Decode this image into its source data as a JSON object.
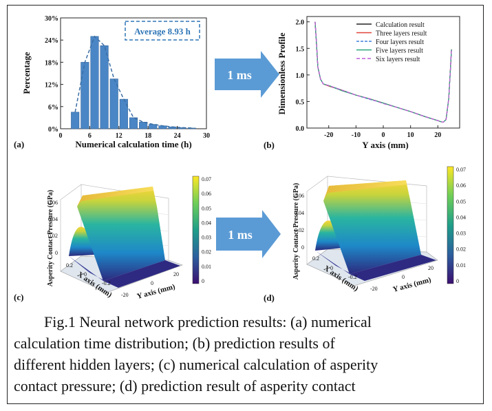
{
  "panel_a": {
    "tag": "(a)",
    "annotation": "Average 8.93 h",
    "xlabel": "Numerical calculation time (h)",
    "ylabel": "Percentage",
    "xticks": [
      "0",
      "6",
      "12",
      "18",
      "24",
      "30"
    ],
    "yticks": [
      "0%",
      "6%",
      "12%",
      "18%",
      "24%",
      "30%"
    ]
  },
  "panel_b": {
    "tag": "(b)",
    "xlabel": "Y axis (mm)",
    "ylabel": "Dimensionless Profile",
    "xticks": [
      "-20",
      "-10",
      "0",
      "10",
      "20"
    ],
    "yticks": [
      "0.0",
      "0.5",
      "1.0",
      "1.5",
      "2.0"
    ],
    "legend": [
      "Calculation result",
      "Three layers result",
      "Four layers result",
      "Five layers result",
      "Six layers result"
    ]
  },
  "panel_c": {
    "tag": "(c)",
    "zlabel": "Asperity Contact Pressure (GPa)",
    "xlabel": "X axis (mm)",
    "ylabel": "Y axis (mm)",
    "zticks": [
      "0",
      "0.02",
      "0.04",
      "0.06"
    ],
    "xticks": [
      "0.2",
      "0",
      "-0.2"
    ],
    "yticks": [
      "-20",
      "0",
      "20"
    ],
    "colorbar_ticks": [
      "0.07",
      "0.06",
      "0.05",
      "0.04",
      "0.03",
      "0.02",
      "0.01",
      "0"
    ]
  },
  "panel_d": {
    "tag": "(d)",
    "zlabel": "Asperity Contact Pressure (GPa)",
    "xlabel": "X axis (mm)",
    "ylabel": "Y axis (mm)",
    "zticks": [
      "0",
      "0.02",
      "0.04",
      "0.06"
    ],
    "xticks": [
      "0.2",
      "0",
      "-0.2"
    ],
    "yticks": [
      "-20",
      "0",
      "20"
    ],
    "colorbar_ticks": [
      "0.07",
      "0.06",
      "0.05",
      "0.04",
      "0.03",
      "0.02",
      "0.01",
      "0"
    ]
  },
  "arrow_top": "1 ms",
  "arrow_bottom": "1 ms",
  "colors": {
    "bar": "#4a86c5",
    "arrow": "#5b9bd5",
    "annotation": "#2e75b6"
  },
  "chart_data": [
    {
      "type": "bar",
      "categories": [
        3,
        5,
        7,
        9,
        11,
        13,
        15,
        17,
        19,
        21,
        23,
        25,
        27
      ],
      "values": [
        4.5,
        18,
        25,
        22.5,
        13.5,
        8,
        3,
        1.8,
        1.2,
        0.8,
        0.5,
        0.3,
        0.2
      ],
      "xlabel": "Numerical calculation time (h)",
      "ylabel": "Percentage",
      "xlim": [
        0,
        30
      ],
      "ylim": [
        0,
        30
      ]
    },
    {
      "type": "line",
      "x": [
        -25,
        -24.5,
        -24,
        -23,
        -22,
        -20,
        -15,
        -10,
        -5,
        0,
        5,
        10,
        15,
        20,
        21,
        22,
        23,
        24,
        24.5,
        25
      ],
      "series": [
        {
          "name": "Calculation result",
          "values": [
            2.0,
            1.6,
            1.15,
            0.92,
            0.83,
            0.8,
            0.71,
            0.62,
            0.55,
            0.47,
            0.39,
            0.31,
            0.22,
            0.14,
            0.12,
            0.11,
            0.16,
            0.55,
            1.0,
            1.48
          ]
        },
        {
          "name": "Three layers result",
          "values": [
            2.0,
            1.6,
            1.15,
            0.92,
            0.83,
            0.79,
            0.71,
            0.62,
            0.55,
            0.47,
            0.39,
            0.31,
            0.22,
            0.14,
            0.12,
            0.11,
            0.16,
            0.55,
            1.0,
            1.48
          ]
        },
        {
          "name": "Four layers result",
          "values": [
            2.0,
            1.6,
            1.15,
            0.92,
            0.83,
            0.8,
            0.71,
            0.62,
            0.54,
            0.47,
            0.39,
            0.31,
            0.22,
            0.14,
            0.12,
            0.11,
            0.16,
            0.55,
            1.0,
            1.48
          ]
        },
        {
          "name": "Five layers result",
          "values": [
            2.0,
            1.6,
            1.15,
            0.92,
            0.83,
            0.8,
            0.7,
            0.62,
            0.55,
            0.47,
            0.39,
            0.31,
            0.22,
            0.14,
            0.12,
            0.11,
            0.16,
            0.55,
            1.0,
            1.48
          ]
        },
        {
          "name": "Six layers result",
          "values": [
            2.0,
            1.6,
            1.15,
            0.92,
            0.83,
            0.8,
            0.71,
            0.62,
            0.55,
            0.46,
            0.39,
            0.31,
            0.22,
            0.14,
            0.12,
            0.11,
            0.16,
            0.55,
            1.0,
            1.48
          ]
        }
      ],
      "xlabel": "Y axis (mm)",
      "ylabel": "Dimensionless Profile",
      "xlim": [
        -28,
        28
      ],
      "ylim": [
        0,
        2.1
      ]
    }
  ],
  "caption_lines": [
    "Fig.1 Neural network prediction results: (a)  numerical",
    "calculation time distribution; (b) prediction results of",
    "different hidden layers; (c) numerical calculation of asperity",
    "contact pressure; (d) prediction result of asperity contact"
  ]
}
